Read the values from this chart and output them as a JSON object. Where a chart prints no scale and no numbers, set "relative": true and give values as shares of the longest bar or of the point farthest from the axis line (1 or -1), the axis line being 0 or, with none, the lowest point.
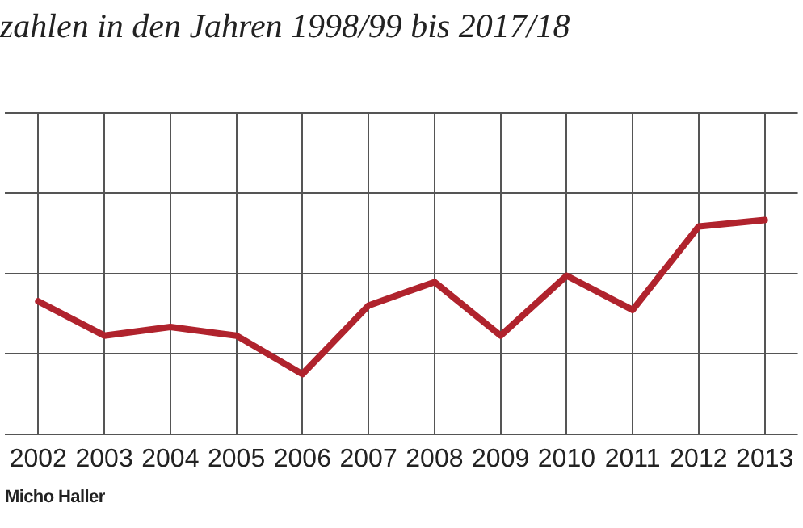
{
  "chart_data": {
    "type": "line",
    "title": "zahlen in den Jahren 1998/99 bis 2017/18",
    "relative": true,
    "categories": [
      "2002",
      "2003",
      "2004",
      "2005",
      "2006",
      "2007",
      "2008",
      "2009",
      "2010",
      "2011",
      "2012",
      "2013"
    ],
    "series": [
      {
        "color": "#b0232d",
        "values": [
          0.62,
          0.46,
          0.5,
          0.46,
          0.28,
          0.6,
          0.71,
          0.46,
          0.74,
          0.58,
          0.97,
          1
        ]
      }
    ],
    "grid": true,
    "legend": false,
    "marker": "none",
    "line_style": "solid",
    "annotations": [
      "Micho Haller"
    ]
  }
}
